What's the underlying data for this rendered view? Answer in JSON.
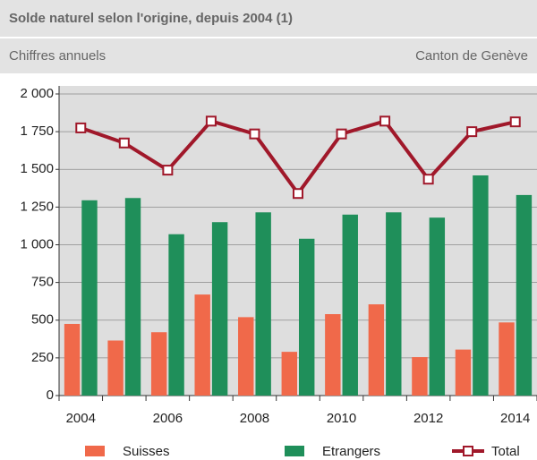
{
  "chart_data": {
    "type": "bar",
    "title": "Solde naturel selon l'origine, depuis 2004 (1)",
    "subtitle": "Chiffres annuels",
    "region": "Canton de Genève",
    "categories": [
      "2004",
      null,
      "2006",
      null,
      "2008",
      null,
      "2010",
      null,
      "2012",
      null,
      "2014"
    ],
    "series": [
      {
        "name": "Suisses",
        "color": "#f0694a",
        "values": [
          475,
          365,
          420,
          670,
          520,
          290,
          540,
          605,
          255,
          305,
          485
        ]
      },
      {
        "name": "Etrangers",
        "color": "#1f8f5a",
        "values": [
          1295,
          1310,
          1070,
          1150,
          1215,
          1040,
          1200,
          1215,
          1180,
          1460,
          1330
        ]
      },
      {
        "name": "Total",
        "color": "#a0182a",
        "type": "line",
        "values": [
          1775,
          1675,
          1495,
          1820,
          1735,
          1340,
          1735,
          1820,
          1435,
          1750,
          1815
        ]
      }
    ],
    "ylim": [
      0,
      2000
    ],
    "yticks": [
      0,
      250,
      500,
      750,
      {
        "value": 1000,
        "label": "1 000"
      },
      {
        "value": 1250,
        "label": "1 250"
      },
      {
        "value": 1500,
        "label": "1 500"
      },
      {
        "value": 1750,
        "label": "1 750"
      },
      {
        "value": 2000,
        "label": "2 000"
      }
    ],
    "grid": true
  }
}
